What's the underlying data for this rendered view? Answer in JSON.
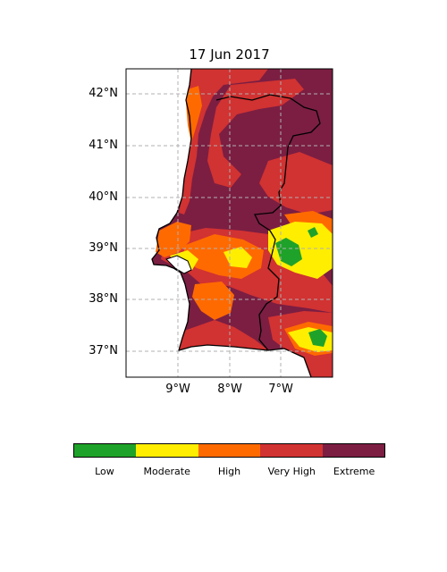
{
  "title": "17 Jun 2017",
  "lat_ticks": [
    "42°N",
    "41°N",
    "40°N",
    "39°N",
    "38°N",
    "37°N"
  ],
  "lon_ticks": [
    "9°W",
    "8°W",
    "7°W"
  ],
  "colorbar": {
    "classes": [
      {
        "label": "Low",
        "color": "#1fa22a"
      },
      {
        "label": "Moderate",
        "color": "#ffee00"
      },
      {
        "label": "High",
        "color": "#ff6a00"
      },
      {
        "label": "Very High",
        "color": "#d13232"
      },
      {
        "label": "Extreme",
        "color": "#7b1e42"
      }
    ]
  }
}
